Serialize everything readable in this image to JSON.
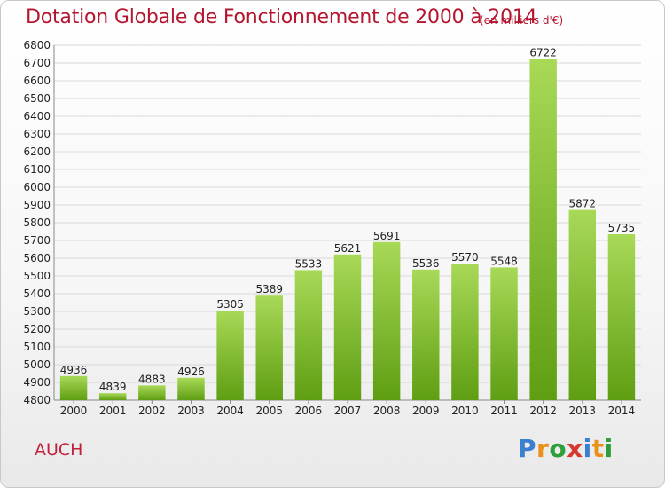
{
  "header": {
    "title": "Dotation Globale de Fonctionnement de 2000 à 2014",
    "unit": "(en milliers d'€)"
  },
  "footer": {
    "commune": "AUCH",
    "logo_text": "Proxiti"
  },
  "colors": {
    "title": "#b5162f",
    "bar_light": "#a8d957",
    "bar_dark": "#5f9e13",
    "grid": "#d9d9d9",
    "logo": [
      "#3a7fd0",
      "#e8911a",
      "#2e9e3a",
      "#d6382f",
      "#3a7fd0",
      "#e8911a",
      "#2e9e3a"
    ]
  },
  "chart_data": {
    "type": "bar",
    "categories": [
      "2000",
      "2001",
      "2002",
      "2003",
      "2004",
      "2005",
      "2006",
      "2007",
      "2008",
      "2009",
      "2010",
      "2011",
      "2012",
      "2013",
      "2014"
    ],
    "values": [
      4936,
      4839,
      4883,
      4926,
      5305,
      5389,
      5533,
      5621,
      5691,
      5536,
      5570,
      5548,
      6722,
      5872,
      5735
    ],
    "ylim": [
      4800,
      6800
    ],
    "ytick_step": 100,
    "grid": true
  }
}
